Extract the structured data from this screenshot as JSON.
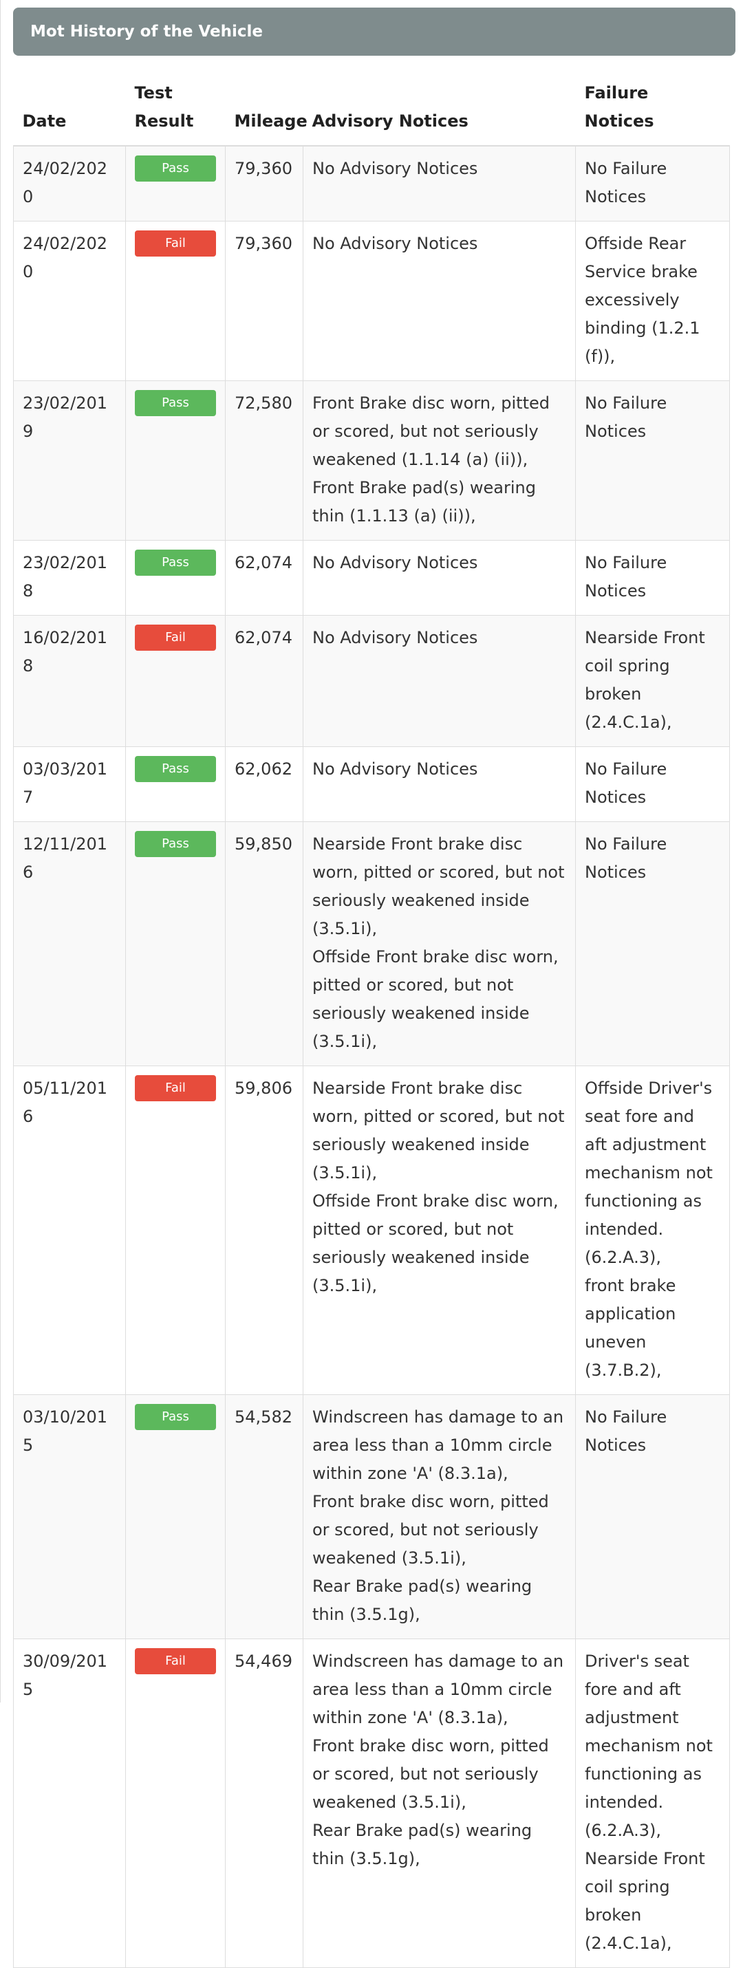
{
  "panel": {
    "title": "Mot History of the Vehicle"
  },
  "colors": {
    "pass": "#5cb85c",
    "fail": "#e74c3c",
    "heading": "#7f8c8d"
  },
  "table": {
    "headers": {
      "date": "Date",
      "test_result": "Test Result",
      "mileage": "Mileage",
      "advisory": "Advisory Notices",
      "failure": "Failure Notices"
    },
    "rows": [
      {
        "date": "24/02/2020",
        "result": "Pass",
        "mileage": "79,360",
        "advisory": [
          "No Advisory Notices"
        ],
        "failure": [
          "No Failure Notices"
        ]
      },
      {
        "date": "24/02/2020",
        "result": "Fail",
        "mileage": "79,360",
        "advisory": [
          "No Advisory Notices"
        ],
        "failure": [
          "Offside Rear Service brake excessively binding (1.2.1 (f)),"
        ]
      },
      {
        "date": "23/02/2019",
        "result": "Pass",
        "mileage": "72,580",
        "advisory": [
          "Front Brake disc worn, pitted or scored, but not seriously weakened (1.1.14 (a) (ii)),",
          "Front Brake pad(s) wearing thin (1.1.13 (a) (ii)),"
        ],
        "failure": [
          "No Failure Notices"
        ]
      },
      {
        "date": "23/02/2018",
        "result": "Pass",
        "mileage": "62,074",
        "advisory": [
          "No Advisory Notices"
        ],
        "failure": [
          "No Failure Notices"
        ]
      },
      {
        "date": "16/02/2018",
        "result": "Fail",
        "mileage": "62,074",
        "advisory": [
          "No Advisory Notices"
        ],
        "failure": [
          "Nearside Front coil spring broken (2.4.C.1a),"
        ]
      },
      {
        "date": "03/03/2017",
        "result": "Pass",
        "mileage": "62,062",
        "advisory": [
          "No Advisory Notices"
        ],
        "failure": [
          "No Failure Notices"
        ]
      },
      {
        "date": "12/11/2016",
        "result": "Pass",
        "mileage": "59,850",
        "advisory": [
          "Nearside Front brake disc worn, pitted or scored, but not seriously weakened inside (3.5.1i),",
          "Offside Front brake disc worn, pitted or scored, but not seriously weakened inside (3.5.1i),"
        ],
        "failure": [
          "No Failure Notices"
        ]
      },
      {
        "date": "05/11/2016",
        "result": "Fail",
        "mileage": "59,806",
        "advisory": [
          "Nearside Front brake disc worn, pitted or scored, but not seriously weakened inside (3.5.1i),",
          "Offside Front brake disc worn, pitted or scored, but not seriously weakened inside (3.5.1i),"
        ],
        "failure": [
          "Offside Driver's seat fore and aft adjustment mechanism not functioning as intended. (6.2.A.3),",
          "front brake application uneven (3.7.B.2),"
        ]
      },
      {
        "date": "03/10/2015",
        "result": "Pass",
        "mileage": "54,582",
        "advisory": [
          "Windscreen has damage to an area less than a 10mm circle within zone 'A' (8.3.1a),",
          "Front brake disc worn, pitted or scored, but not seriously weakened (3.5.1i),",
          "Rear Brake pad(s) wearing thin (3.5.1g),"
        ],
        "failure": [
          "No Failure Notices"
        ]
      },
      {
        "date": "30/09/2015",
        "result": "Fail",
        "mileage": "54,469",
        "advisory": [
          "Windscreen has damage to an area less than a 10mm circle within zone 'A' (8.3.1a),",
          "Front brake disc worn, pitted or scored, but not seriously weakened (3.5.1i),",
          "Rear Brake pad(s) wearing thin (3.5.1g),"
        ],
        "failure": [
          "Driver's seat fore and aft adjustment mechanism not functioning as intended. (6.2.A.3),",
          "Nearside Front coil spring broken (2.4.C.1a),"
        ]
      }
    ]
  }
}
